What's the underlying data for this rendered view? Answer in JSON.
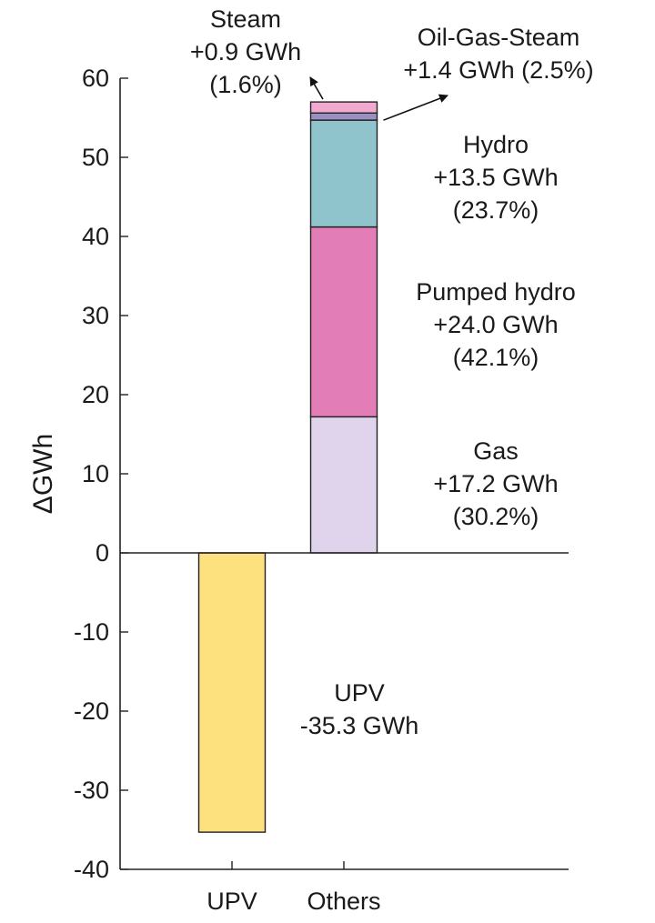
{
  "chart_data": {
    "type": "bar",
    "stacked": true,
    "ylabel": "ΔGWh",
    "xlabel": "",
    "ylim": [
      -40,
      60
    ],
    "yticks": [
      60,
      50,
      40,
      30,
      20,
      10,
      0,
      -10,
      -20,
      -30,
      -40
    ],
    "grid": false,
    "categories": [
      "UPV",
      "Others"
    ],
    "series": [
      {
        "name": "UPV",
        "category": "UPV",
        "value": -35.3,
        "color": "#fde17f"
      },
      {
        "name": "Gas",
        "category": "Others",
        "value": 17.2,
        "color": "#e0d3ec"
      },
      {
        "name": "Pumped hydro",
        "category": "Others",
        "value": 24.0,
        "color": "#e27db7"
      },
      {
        "name": "Hydro",
        "category": "Others",
        "value": 13.5,
        "color": "#8fc4cd"
      },
      {
        "name": "Steam",
        "category": "Others",
        "value": 0.9,
        "color": "#9a8fc2"
      },
      {
        "name": "Oil-Gas-Steam",
        "category": "Others",
        "value": 1.4,
        "color": "#f1a9cf"
      }
    ],
    "annotations": [
      {
        "series": "Steam",
        "lines": [
          "Steam",
          "+0.9 GWh",
          "(1.6%)"
        ]
      },
      {
        "series": "Oil-Gas-Steam",
        "lines": [
          "Oil-Gas-Steam",
          "+1.4 GWh (2.5%)"
        ]
      },
      {
        "series": "Hydro",
        "lines": [
          "Hydro",
          "+13.5 GWh",
          "(23.7%)"
        ]
      },
      {
        "series": "Pumped hydro",
        "lines": [
          "Pumped hydro",
          "+24.0 GWh",
          "(42.1%)"
        ]
      },
      {
        "series": "Gas",
        "lines": [
          "Gas",
          "+17.2 GWh",
          "(30.2%)"
        ]
      },
      {
        "series": "UPV",
        "lines": [
          "UPV",
          "-35.3 GWh"
        ]
      }
    ]
  }
}
